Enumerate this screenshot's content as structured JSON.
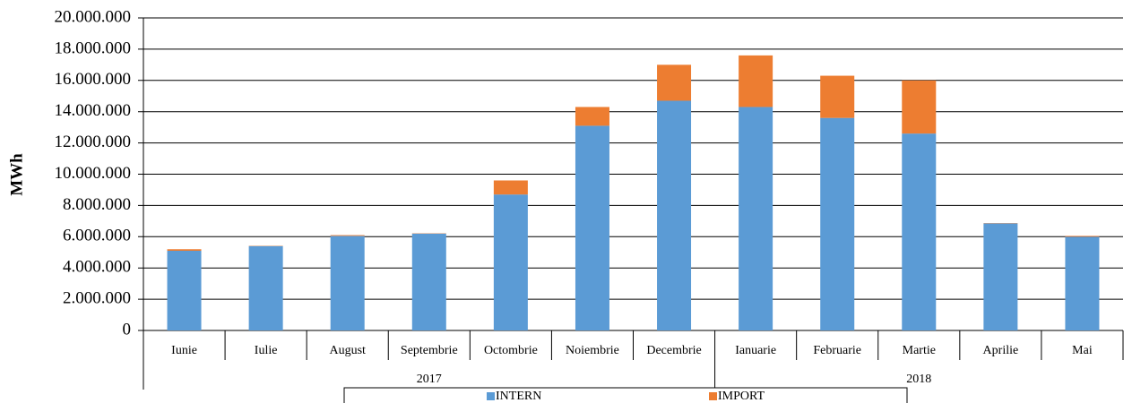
{
  "chart_data": {
    "type": "stacked_bar",
    "y_label": "MWh",
    "categories": [
      "Iunie",
      "Iulie",
      "August",
      "Septembrie",
      "Octombrie",
      "Noiembrie",
      "Decembrie",
      "Ianuarie",
      "Februarie",
      "Martie",
      "Aprilie",
      "Mai"
    ],
    "groups": [
      {
        "label": "2017",
        "span": 7
      },
      {
        "label": "2018",
        "span": 5
      }
    ],
    "series": [
      {
        "name": "INTERN",
        "color": "#5b9bd5",
        "values": [
          5100000,
          5400000,
          6050000,
          6200000,
          8700000,
          13100000,
          14700000,
          14300000,
          13600000,
          12600000,
          6850000,
          6000000
        ]
      },
      {
        "name": "IMPORT",
        "color": "#ed7d31",
        "values": [
          100000,
          20000,
          50000,
          20000,
          900000,
          1200000,
          2300000,
          3300000,
          2700000,
          3400000,
          20000,
          50000
        ]
      }
    ],
    "ylim": [
      0,
      20000000
    ],
    "yticks": [
      0,
      {
        "value": 2000000,
        "label": "2.000.000"
      },
      {
        "value": 4000000,
        "label": "4.000.000"
      },
      {
        "value": 6000000,
        "label": "6.000.000"
      },
      {
        "value": 8000000,
        "label": "8.000.000"
      },
      {
        "value": 10000000,
        "label": "10.000.000"
      },
      {
        "value": 12000000,
        "label": "12.000.000"
      },
      {
        "value": 14000000,
        "label": "14.000.000"
      },
      {
        "value": 16000000,
        "label": "16.000.000"
      },
      {
        "value": 18000000,
        "label": "18.000.000"
      },
      {
        "value": 20000000,
        "label": "20.000.000"
      }
    ],
    "grid": true,
    "legend": "bottom"
  }
}
